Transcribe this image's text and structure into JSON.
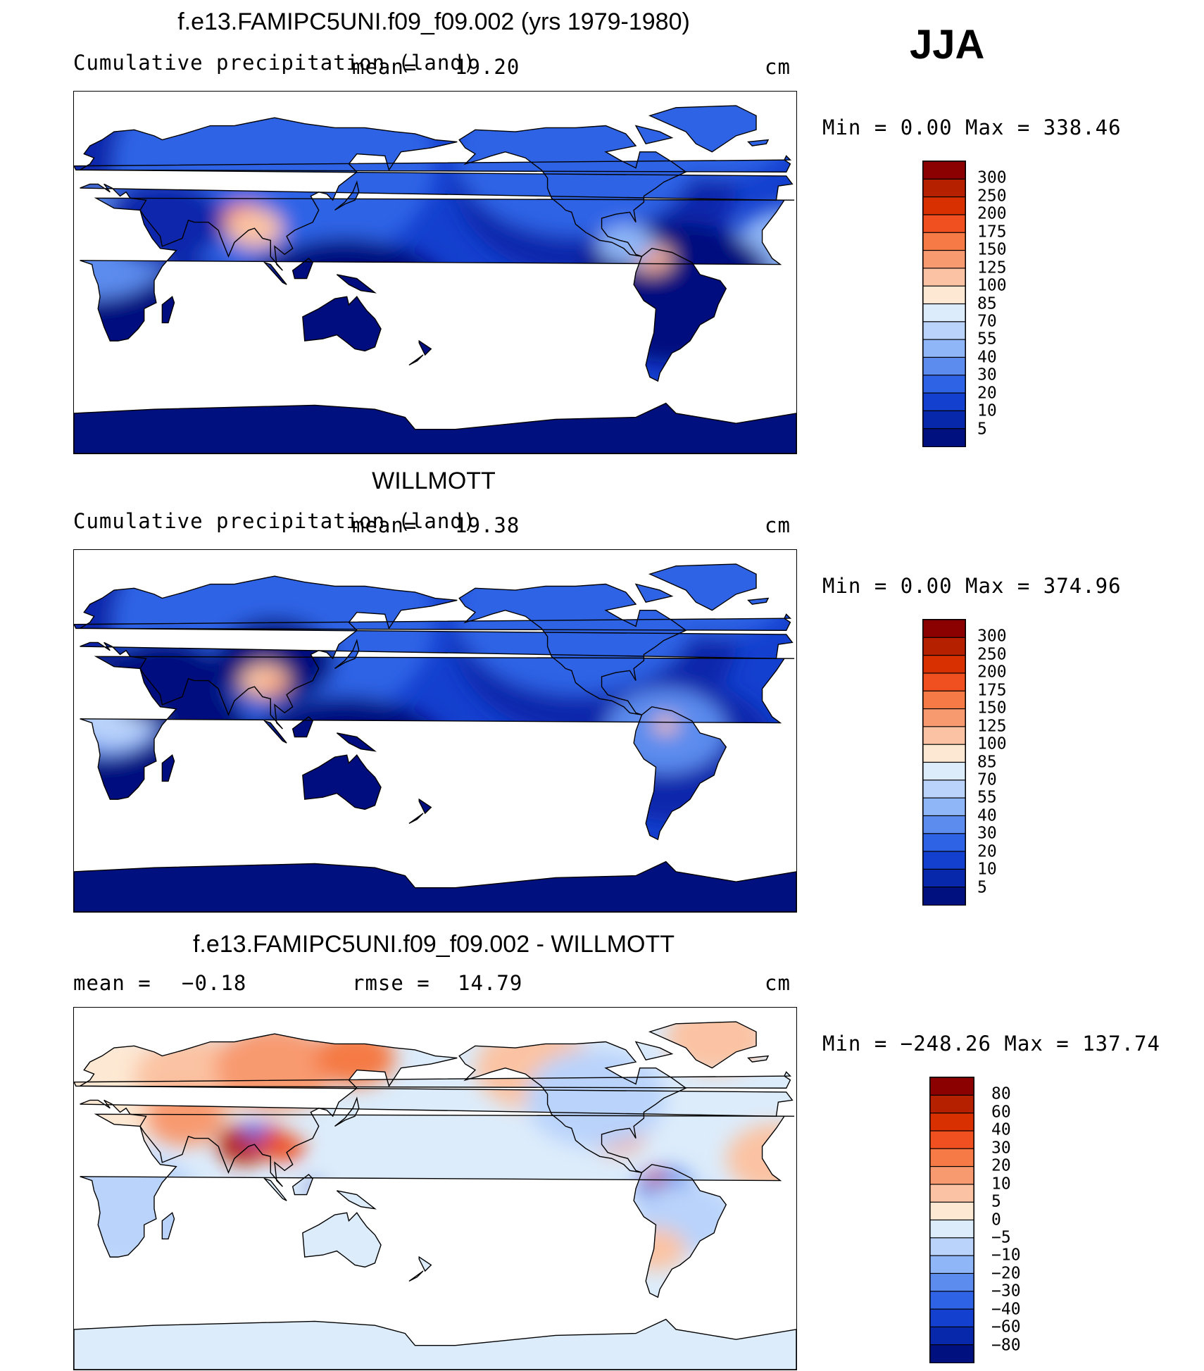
{
  "season": "JJA",
  "panels": [
    {
      "id": "model",
      "title": "f.e13.FAMIPC5UNI.f09_f09.002 (yrs 1979-1980)",
      "left_label": "Cumulative precipitation (land)",
      "mean_label": "mean=",
      "mean_value": "19.20",
      "units": "cm",
      "minmax": "Min  =    0.00 Max  = 338.46",
      "cbar_labels": [
        "300",
        "250",
        "200",
        "175",
        "150",
        "125",
        "100",
        "85",
        "70",
        "55",
        "40",
        "30",
        "20",
        "10",
        "5"
      ],
      "cbar_colors": [
        "#8b0000",
        "#b52000",
        "#d83000",
        "#f05020",
        "#f57a45",
        "#f89a70",
        "#fbc3a3",
        "#fde8d3",
        "#dcecfb",
        "#b9d3fb",
        "#8fb6f6",
        "#5b8cee",
        "#2f63e6",
        "#1440cf",
        "#0828ab",
        "#00107e"
      ],
      "field": "precip_model"
    },
    {
      "id": "obs",
      "title": "WILLMOTT",
      "left_label": "Cumulative precipitation (land)",
      "mean_label": "mean=",
      "mean_value": "19.38",
      "units": "cm",
      "minmax": "Min  =    0.00 Max  = 374.96",
      "cbar_labels": [
        "300",
        "250",
        "200",
        "175",
        "150",
        "125",
        "100",
        "85",
        "70",
        "55",
        "40",
        "30",
        "20",
        "10",
        "5"
      ],
      "cbar_colors": [
        "#8b0000",
        "#b52000",
        "#d83000",
        "#f05020",
        "#f57a45",
        "#f89a70",
        "#fbc3a3",
        "#fde8d3",
        "#dcecfb",
        "#b9d3fb",
        "#8fb6f6",
        "#5b8cee",
        "#2f63e6",
        "#1440cf",
        "#0828ab",
        "#00107e"
      ],
      "field": "precip_obs"
    },
    {
      "id": "diff",
      "title": "f.e13.FAMIPC5UNI.f09_f09.002 - WILLMOTT",
      "mean_label": "mean  =",
      "mean_value": "−0.18",
      "rmse_label": "rmse  =",
      "rmse_value": "14.79",
      "units": "cm",
      "minmax": "Min  = −248.26 Max  = 137.74",
      "cbar_labels": [
        "80",
        "60",
        "40",
        "30",
        "20",
        "10",
        "5",
        "0",
        "−5",
        "−10",
        "−20",
        "−30",
        "−40",
        "−60",
        "−80"
      ],
      "cbar_colors": [
        "#8b0000",
        "#b52000",
        "#d83000",
        "#f05020",
        "#f57a45",
        "#f89a70",
        "#fbc3a3",
        "#fde8d3",
        "#dcecfb",
        "#b9d3fb",
        "#8fb6f6",
        "#5b8cee",
        "#2f63e6",
        "#1440cf",
        "#0828ab",
        "#00107e"
      ],
      "field": "precip_diff"
    }
  ],
  "map": {
    "projection": "cylindrical equidistant",
    "center_longitude": "180",
    "coastlines": true,
    "land_only": true
  }
}
